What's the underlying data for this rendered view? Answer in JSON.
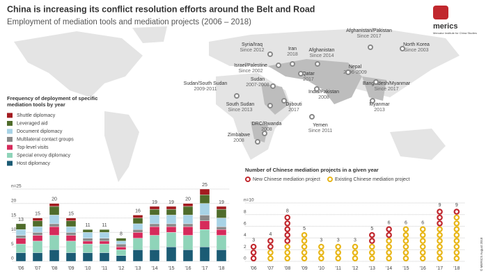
{
  "header": {
    "title": "China is increasing its conflict resolution efforts around the Belt and Road",
    "subtitle": "Employment of mediation tools and mediation projects (2006 – 2018)",
    "logo": "merics",
    "logo_sub": "Mercator Institute for China Studies",
    "credit": "© MERICS August 2018"
  },
  "map": {
    "labels": [
      {
        "name": "North Korea",
        "years": "Since 2003"
      },
      {
        "name": "Afghanistan/Pakistan",
        "years": "Since 2017"
      },
      {
        "name": "Syria/Iraq",
        "years": "Since 2012"
      },
      {
        "name": "Iran",
        "years": "2018"
      },
      {
        "name": "Afghanistan",
        "years": "Since 2014"
      },
      {
        "name": "Israel/Palestine",
        "years": "Since 2002"
      },
      {
        "name": "Qatar",
        "years": "2017"
      },
      {
        "name": "Nepal",
        "years": "2006-2009"
      },
      {
        "name": "Sudan/South Sudan",
        "years": "2009-2011"
      },
      {
        "name": "Sudan",
        "years": "2007-2008"
      },
      {
        "name": "India/Pakistan",
        "years": "2008"
      },
      {
        "name": "Bangladesh/Myanmar",
        "years": "Since 2017"
      },
      {
        "name": "Myanmar",
        "years": "2013"
      },
      {
        "name": "South Sudan",
        "years": "Since 2013"
      },
      {
        "name": "Djibouti",
        "years": "2017"
      },
      {
        "name": "Yemen",
        "years": "Since 2011"
      },
      {
        "name": "DRC/Rwanda",
        "years": "2008"
      },
      {
        "name": "Zimbabwe",
        "years": "2008"
      }
    ]
  },
  "chart_data": [
    {
      "type": "stacked_bar",
      "title": "Frequency of deployment of specific mediation tools by year",
      "categories": [
        "'06",
        "'07",
        "'08",
        "'09",
        "'10",
        "'11",
        "'12",
        "'13",
        "'14",
        "'15",
        "'16",
        "'17",
        "'18"
      ],
      "series": [
        {
          "name": "Host diplomacy",
          "color": "#1b5b74",
          "values": [
            3,
            3,
            4,
            3,
            3,
            3,
            2,
            4,
            4,
            5,
            4,
            5,
            4
          ]
        },
        {
          "name": "Special envoy diplomacy",
          "color": "#8fd4b9",
          "values": [
            3,
            4,
            5,
            4,
            3,
            3,
            2,
            4,
            5,
            5,
            5,
            6,
            5
          ]
        },
        {
          "name": "Top-level visits",
          "color": "#d62a5b",
          "values": [
            2,
            2,
            3,
            2,
            1,
            1,
            1,
            2,
            3,
            2,
            3,
            3,
            2
          ]
        },
        {
          "name": "Multilateral contact groups",
          "color": "#8a8a8a",
          "values": [
            1,
            1,
            1,
            1,
            1,
            1,
            1,
            1,
            1,
            1,
            1,
            2,
            1
          ]
        },
        {
          "name": "Document diplomacy",
          "color": "#a8d3e6",
          "values": [
            2,
            2,
            3,
            2,
            2,
            2,
            1,
            2,
            3,
            3,
            3,
            4,
            3
          ]
        },
        {
          "name": "Leveraged aid",
          "color": "#4f6c2b",
          "values": [
            2,
            2,
            3,
            2,
            1,
            1,
            1,
            2,
            2,
            2,
            3,
            3,
            3
          ]
        },
        {
          "name": "Shuttle diplomacy",
          "color": "#a31b20",
          "values": [
            0,
            1,
            1,
            1,
            0,
            0,
            0,
            1,
            1,
            1,
            1,
            2,
            1
          ]
        }
      ],
      "totals": [
        13,
        15,
        20,
        15,
        11,
        11,
        8,
        16,
        19,
        19,
        20,
        25,
        19
      ],
      "ylim": [
        0,
        25
      ],
      "yticks": [
        0,
        5,
        10,
        15,
        20,
        {
          "value": 25,
          "label": "n=25"
        }
      ],
      "grid": true
    },
    {
      "type": "dot_stack",
      "title": "Number of Chinese mediation projects in a given year",
      "categories": [
        "'06",
        "'07",
        "'08",
        "'09",
        "'10",
        "'11",
        "'12",
        "'13",
        "'14",
        "'15",
        "'16",
        "'17",
        "'18"
      ],
      "series": [
        {
          "name": "New Chinese mediation project",
          "color": "#c1282e",
          "values": [
            3,
            2,
            5,
            0,
            0,
            0,
            0,
            2,
            2,
            0,
            0,
            3,
            1
          ]
        },
        {
          "name": "Existing Chinese mediation project",
          "color": "#e8b618",
          "values": [
            0,
            2,
            3,
            5,
            3,
            3,
            3,
            3,
            4,
            6,
            6,
            6,
            8
          ]
        }
      ],
      "totals": [
        3,
        4,
        8,
        5,
        3,
        3,
        3,
        5,
        6,
        6,
        6,
        9,
        9
      ],
      "ylim": [
        0,
        10
      ],
      "yticks": [
        0,
        2,
        4,
        6,
        8,
        {
          "value": 10,
          "label": "n=10"
        }
      ],
      "grid": true
    }
  ]
}
